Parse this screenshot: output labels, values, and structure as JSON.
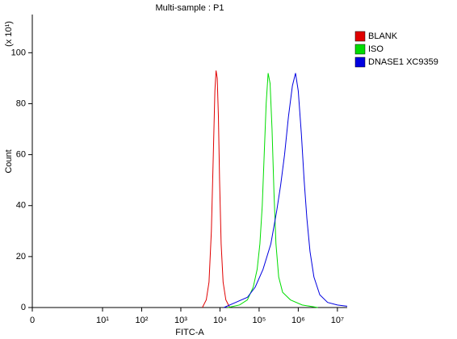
{
  "chart_data": {
    "type": "line",
    "title": "Multi-sample : P1",
    "x_label": "FITC-A",
    "y_label": "Count",
    "y_multiplier": "(x 10¹)",
    "xscale": "log",
    "legend": "right",
    "xlim": [
      0,
      17782794
    ],
    "ylim": [
      0,
      115
    ],
    "xticks": [
      0,
      {
        "value": 10,
        "label": "10¹"
      },
      {
        "value": 100,
        "label": "10²"
      },
      {
        "value": 1000,
        "label": "10³"
      },
      {
        "value": 10000,
        "label": "10⁴"
      },
      {
        "value": 100000,
        "label": "10⁵"
      },
      {
        "value": 1000000,
        "label": "10⁶"
      },
      {
        "value": 10000000,
        "label": "10⁷"
      }
    ],
    "yticks": [
      0,
      20,
      40,
      60,
      80,
      100
    ],
    "series": [
      {
        "name": "BLANK",
        "color": "#e00000",
        "x": [
          3548,
          4467,
          5248,
          6026,
          6761,
          7413,
          7943,
          8511,
          9120,
          9772,
          10715,
          12023,
          14125,
          17783
        ],
        "values": [
          0,
          3,
          10,
          30,
          60,
          85,
          93,
          90,
          75,
          50,
          25,
          10,
          3,
          0
        ]
      },
      {
        "name": "ISO",
        "color": "#00dd00",
        "x": [
          15849,
          31623,
          50119,
          70795,
          89125,
          104713,
          120226,
          134896,
          151356,
          169824,
          190546,
          213796,
          239883,
          269153,
          316228,
          398107,
          630957,
          1258925,
          3162278
        ],
        "values": [
          0,
          1,
          3,
          8,
          15,
          25,
          40,
          60,
          80,
          92,
          88,
          70,
          45,
          25,
          12,
          6,
          3,
          1,
          0
        ]
      },
      {
        "name": "DNASE1 XC9359",
        "color": "#0000e0",
        "x": [
          12589,
          25119,
          50119,
          79433,
          125893,
          199526,
          281838,
          354813,
          446684,
          562341,
          707946,
          851138,
          1000000,
          1202264,
          1412538,
          1659587,
          1995262,
          2511886,
          3548134,
          5623413,
          10000000,
          17782794
        ],
        "values": [
          0,
          2,
          4,
          8,
          15,
          25,
          38,
          48,
          60,
          75,
          87,
          92,
          85,
          68,
          50,
          35,
          22,
          12,
          5,
          2,
          1,
          0.5
        ]
      }
    ]
  }
}
